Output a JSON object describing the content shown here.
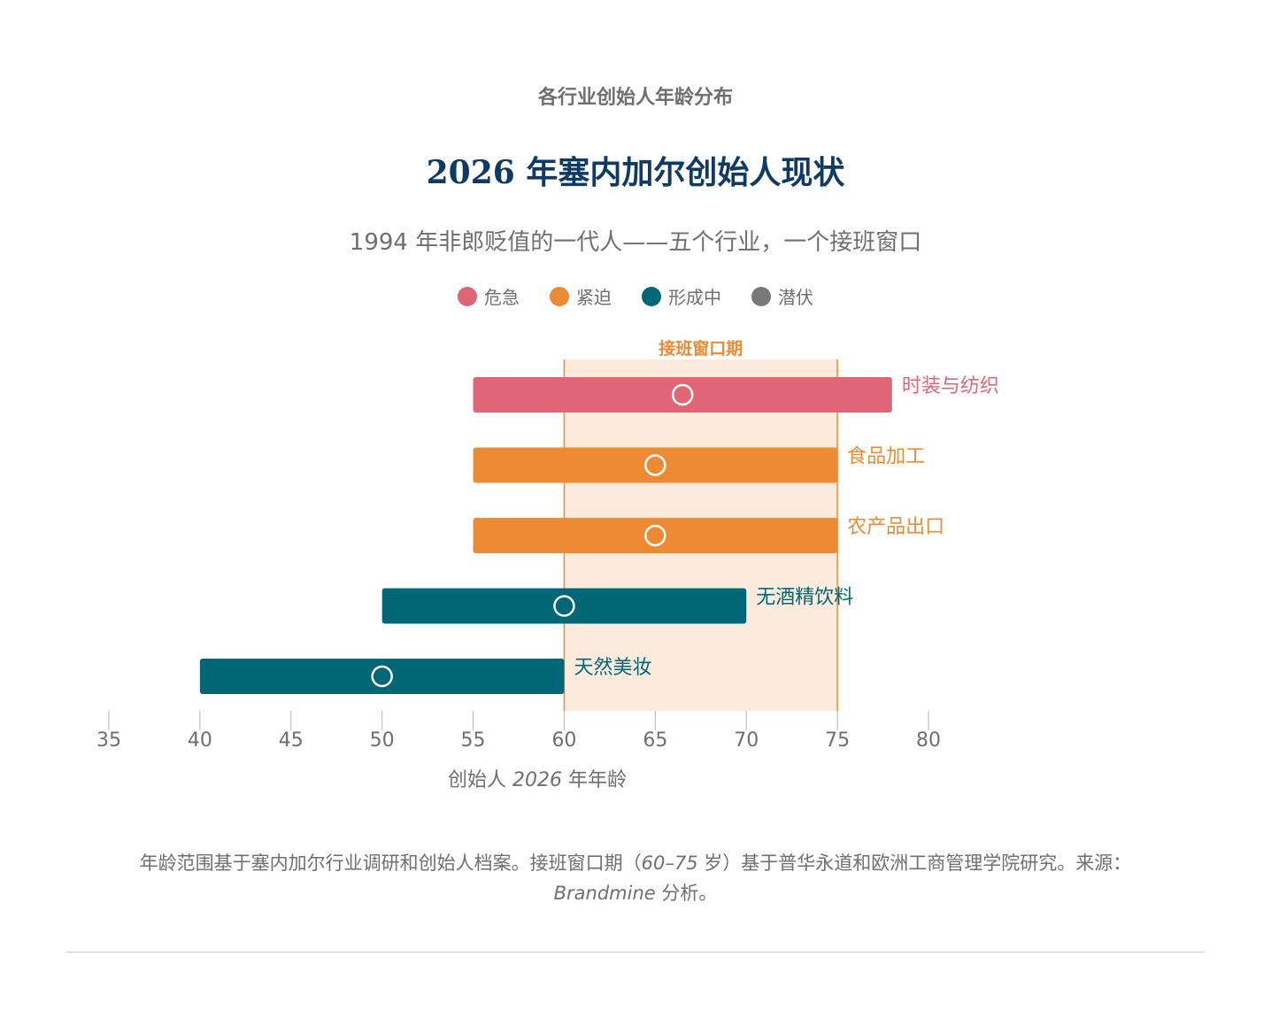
{
  "eyebrow": "各行业创始人年龄分布",
  "title": "2026 年塞内加尔创始人现状",
  "subtitle": "1994 年非郎贬值的一代人——五个行业，一个接班窗口",
  "legend": [
    {
      "label": "危急",
      "color": "#e06677"
    },
    {
      "label": "紧迫",
      "color": "#ee8a33"
    },
    {
      "label": "形成中",
      "color": "#016776"
    },
    {
      "label": "潜伏",
      "color": "#77787a"
    }
  ],
  "footnote": {
    "line1_a": "年龄范围基于塞内加尔行业调研和创始人档案。接班窗口期（",
    "line1_b": "60–75",
    "line1_c": " 岁）基于普华永道和欧洲工商管理学院研究。来源：",
    "line2_a": "Brandmine",
    "line2_b": " 分析。"
  },
  "chart_data": {
    "type": "range-bar",
    "window": {
      "label": "接班窗口期",
      "start": 60,
      "end": 75,
      "color": "#fcebdd",
      "line_color": "#ee8a33"
    },
    "xaxis": {
      "min": 35,
      "max": 80,
      "ticks": [
        35,
        40,
        45,
        50,
        55,
        60,
        65,
        70,
        75,
        80
      ],
      "label_a": "创始人 ",
      "label_b": "2026",
      "label_c": " 年年龄"
    },
    "series": [
      {
        "name": "时装与纺织",
        "start": 55,
        "end": 78,
        "median": 66.5,
        "status": "危急",
        "color": "#e06677"
      },
      {
        "name": "食品加工",
        "start": 55,
        "end": 75,
        "median": 65,
        "status": "紧迫",
        "color": "#ee8a33"
      },
      {
        "name": "农产品出口",
        "start": 55,
        "end": 75,
        "median": 65,
        "status": "紧迫",
        "color": "#ee8a33"
      },
      {
        "name": "无酒精饮料",
        "start": 50,
        "end": 70,
        "median": 60,
        "status": "形成中",
        "color": "#016776"
      },
      {
        "name": "天然美妆",
        "start": 40,
        "end": 60,
        "median": 50,
        "status": "形成中",
        "color": "#016776"
      }
    ]
  }
}
